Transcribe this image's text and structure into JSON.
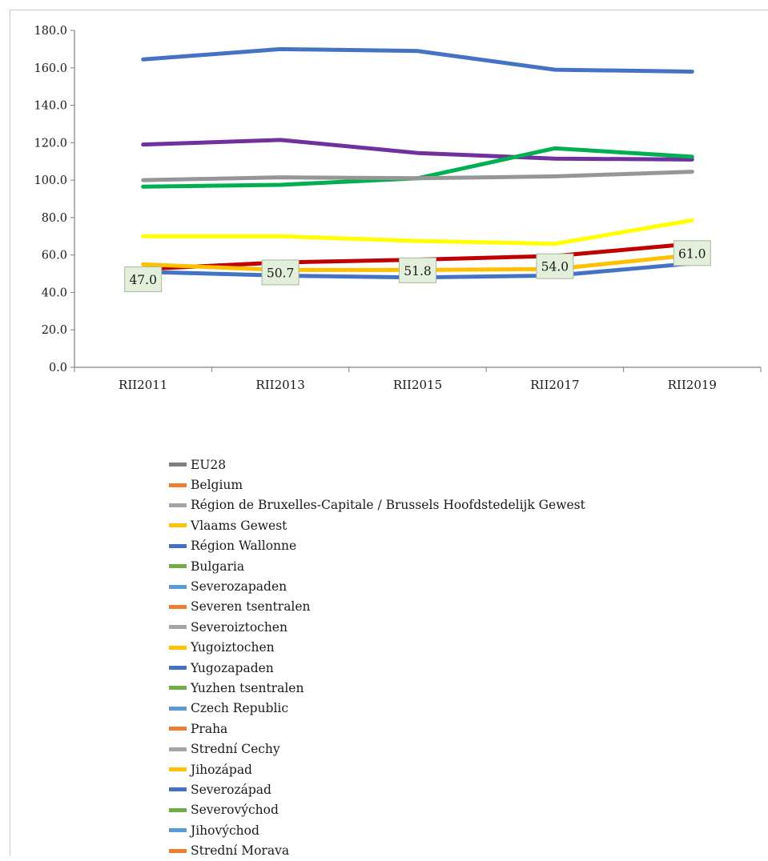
{
  "chart_data": {
    "type": "line",
    "title": "",
    "xlabel": "",
    "ylabel": "",
    "categories": [
      "RII2011",
      "RII2013",
      "RII2015",
      "RII2017",
      "RII2019"
    ],
    "ylim": [
      0,
      180
    ],
    "yticks": [
      "0.0",
      "20.0",
      "40.0",
      "60.0",
      "80.0",
      "100.0",
      "120.0",
      "140.0",
      "160.0",
      "180.0"
    ],
    "grid": false,
    "drawn_lines": [
      {
        "color": "#4472C4",
        "values": [
          164.5,
          170,
          169,
          159,
          158
        ]
      },
      {
        "color": "#7030A0",
        "values": [
          119,
          121.5,
          114.5,
          111.5,
          111
        ]
      },
      {
        "color": "#00B050",
        "values": [
          96.5,
          97.5,
          101,
          117,
          112.5
        ]
      },
      {
        "color": "#969696",
        "values": [
          100,
          101.5,
          101,
          102,
          104.5
        ]
      },
      {
        "color": "#FFFF00",
        "values": [
          70,
          70,
          67.5,
          66,
          78.5
        ]
      },
      {
        "color": "#C00000",
        "values": [
          52.5,
          56,
          57.5,
          59.5,
          66
        ]
      },
      {
        "color": "#FFC000",
        "values": [
          55,
          52,
          52,
          52.5,
          60
        ]
      },
      {
        "color": "#4472C4",
        "values": [
          51,
          49,
          48,
          49,
          55.5
        ]
      }
    ],
    "data_labels": [
      {
        "text": "47.0",
        "index": 0,
        "value": 47.0
      },
      {
        "text": "50.7",
        "index": 1,
        "value": 50.7
      },
      {
        "text": "51.8",
        "index": 2,
        "value": 51.8
      },
      {
        "text": "54.0",
        "index": 3,
        "value": 54.0
      },
      {
        "text": "61.0",
        "index": 4,
        "value": 61.0
      }
    ],
    "legend_position": "bottom",
    "legend": [
      {
        "name": "EU28",
        "color": "#7F7F7F"
      },
      {
        "name": "Belgium",
        "color": "#ED7D31"
      },
      {
        "name": "Région de Bruxelles-Capitale / Brussels Hoofdstedelijk Gewest",
        "color": "#A5A5A5"
      },
      {
        "name": "Vlaams Gewest",
        "color": "#FFC000"
      },
      {
        "name": "Région Wallonne",
        "color": "#4472C4"
      },
      {
        "name": "Bulgaria",
        "color": "#70AD47"
      },
      {
        "name": "Severozapaden",
        "color": "#5B9BD5"
      },
      {
        "name": "Severen tsentralen",
        "color": "#ED7D31"
      },
      {
        "name": "Severoiztochen",
        "color": "#A5A5A5"
      },
      {
        "name": "Yugoiztochen",
        "color": "#FFC000"
      },
      {
        "name": "Yugozapaden",
        "color": "#4472C4"
      },
      {
        "name": "Yuzhen tsentralen",
        "color": "#70AD47"
      },
      {
        "name": "Czech Republic",
        "color": "#5B9BD5"
      },
      {
        "name": "Praha",
        "color": "#ED7D31"
      },
      {
        "name": "Strední Cechy",
        "color": "#A5A5A5"
      },
      {
        "name": "Jihozápad",
        "color": "#FFC000"
      },
      {
        "name": "Severozápad",
        "color": "#4472C4"
      },
      {
        "name": "Severovýchod",
        "color": "#70AD47"
      },
      {
        "name": "Jihovýchod",
        "color": "#5B9BD5"
      },
      {
        "name": "Strední Morava",
        "color": "#ED7D31"
      }
    ]
  }
}
